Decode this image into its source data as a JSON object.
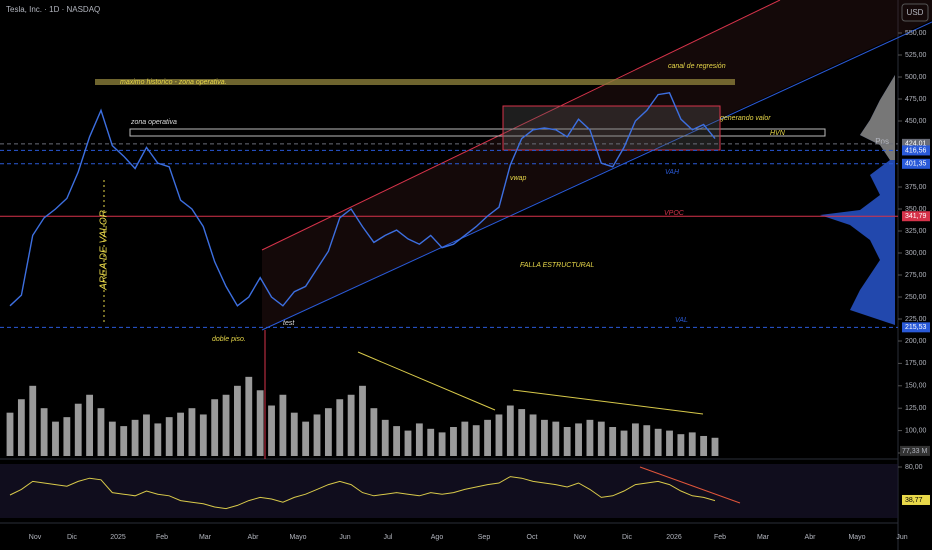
{
  "chart_data": {
    "type": "line",
    "title": "Tesla, Inc. · 1D · NASDAQ",
    "currency": "USD",
    "ylim": [
      200,
      550
    ],
    "yticks": [
      {
        "value": 550,
        "label": "550,00"
      },
      {
        "value": 525,
        "label": "525,00"
      },
      {
        "value": 500,
        "label": "500,00"
      },
      {
        "value": 475,
        "label": "475,00"
      },
      {
        "value": 450,
        "label": "450,00"
      },
      {
        "value": 375,
        "label": "375,00"
      },
      {
        "value": 350,
        "label": "350,00"
      },
      {
        "value": 325,
        "label": "325,00"
      },
      {
        "value": 300,
        "label": "300,00"
      },
      {
        "value": 275,
        "label": "275,00"
      },
      {
        "value": 250,
        "label": "250,00"
      },
      {
        "value": 225,
        "label": "225,00"
      },
      {
        "value": 200,
        "label": "200,00"
      }
    ],
    "price": {
      "color": "#3d6fe0",
      "values": [
        240,
        252,
        320,
        340,
        350,
        362,
        392,
        432,
        462,
        422,
        410,
        396,
        420,
        402,
        398,
        360,
        350,
        330,
        290,
        262,
        240,
        250,
        272,
        250,
        240,
        256,
        262,
        282,
        302,
        340,
        350,
        330,
        312,
        320,
        326,
        316,
        310,
        320,
        306,
        310,
        320,
        330,
        342,
        352,
        400,
        430,
        440,
        442,
        440,
        432,
        452,
        440,
        402,
        398,
        420,
        450,
        462,
        480,
        482,
        452,
        440,
        446,
        430
      ]
    },
    "levels": [
      {
        "value": 424.01,
        "label": "424,01",
        "color": "#6a6d78"
      },
      {
        "value": 416.56,
        "label": "416,56",
        "color": "#2a5ad8"
      },
      {
        "value": 401.35,
        "label": "401,35",
        "color": "#2a5ad8"
      },
      {
        "value": 341.79,
        "label": "341,79",
        "color": "#d6334a"
      },
      {
        "value": 215.53,
        "label": "215,53",
        "color": "#2a5ad8"
      }
    ],
    "pos_label": "Pos",
    "volume": {
      "color": "#9a9a9a",
      "lim": [
        75,
        200
      ],
      "ticks": [
        {
          "value": 175,
          "label": "175,00"
        },
        {
          "value": 150,
          "label": "150,00"
        },
        {
          "value": 125,
          "label": "125,00"
        },
        {
          "value": 100,
          "label": "100,00"
        },
        {
          "value": 75,
          "label": "75,00"
        }
      ],
      "last": {
        "value": 77.33,
        "label": "77,33 M"
      },
      "values": [
        120,
        135,
        150,
        125,
        110,
        115,
        130,
        140,
        125,
        110,
        105,
        112,
        118,
        108,
        115,
        120,
        125,
        118,
        135,
        140,
        150,
        160,
        145,
        128,
        140,
        120,
        110,
        118,
        125,
        135,
        140,
        150,
        125,
        112,
        105,
        100,
        108,
        102,
        98,
        104,
        110,
        106,
        112,
        118,
        128,
        124,
        118,
        112,
        110,
        104,
        108,
        112,
        110,
        104,
        100,
        108,
        106,
        102,
        100,
        96,
        98,
        94,
        92
      ]
    },
    "rsi": {
      "color": "#d8c94a",
      "lim": [
        20,
        80
      ],
      "ticks": [
        {
          "value": 80,
          "label": "80,00"
        }
      ],
      "last": {
        "value": 38.77,
        "label": "38,77"
      },
      "values": [
        45,
        52,
        62,
        60,
        58,
        56,
        62,
        66,
        64,
        48,
        46,
        44,
        50,
        46,
        44,
        38,
        36,
        34,
        30,
        28,
        32,
        38,
        42,
        40,
        36,
        42,
        46,
        52,
        58,
        62,
        58,
        48,
        44,
        46,
        48,
        46,
        44,
        48,
        46,
        48,
        52,
        55,
        58,
        60,
        68,
        66,
        62,
        60,
        58,
        55,
        60,
        52,
        42,
        44,
        50,
        58,
        60,
        62,
        58,
        50,
        44,
        42,
        38
      ]
    },
    "x_labels": [
      "Nov",
      "Dic",
      "2025",
      "Feb",
      "Mar",
      "Abr",
      "Mayo",
      "Jun",
      "Jul",
      "Ago",
      "Sep",
      "Oct",
      "Nov",
      "Dic",
      "2026",
      "Feb",
      "Mar",
      "Abr",
      "Mayo",
      "Jun"
    ],
    "annotations": [
      "maximo historico - zona operativa.",
      "zona operativa",
      "canal de regresión",
      "generando valor",
      "HVN",
      "VAH",
      "VPOC",
      "VAL",
      "FALLA ESTRUCTURAL",
      "AREA DE VALOR",
      "doble piso.",
      "test",
      "vwap"
    ]
  }
}
